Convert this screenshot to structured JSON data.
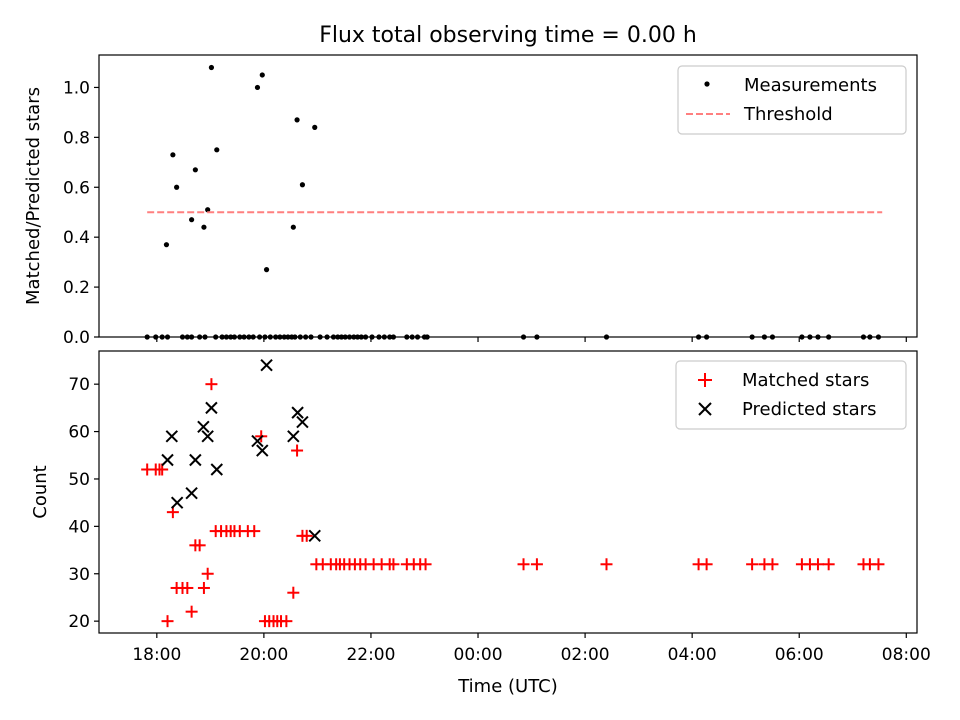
{
  "figure": {
    "title": "Flux total observing time = 0.00 h",
    "xlabel": "Time (UTC)"
  },
  "chart_data": [
    {
      "type": "scatter",
      "ylabel": "Matched/Predicted stars",
      "xlim": [
        16.92,
        32.2
      ],
      "ylim": [
        0,
        1.13
      ],
      "xticks": [
        "18:00",
        "20:00",
        "22:00",
        "00:00",
        "02:00",
        "04:00",
        "06:00",
        "08:00"
      ],
      "yticks": [
        0.0,
        0.2,
        0.4,
        0.6,
        0.8,
        1.0
      ],
      "ytick_labels": [
        "0.0",
        "0.2",
        "0.4",
        "0.6",
        "0.8",
        "1.0"
      ],
      "legend": {
        "placement": "top-right"
      },
      "series": [
        {
          "name": "Measurements",
          "marker": "point",
          "color": "#000000",
          "x": [
            18.18,
            18.3,
            18.37,
            18.65,
            18.72,
            18.88,
            18.95,
            19.02,
            19.12,
            19.88,
            19.97,
            20.05,
            20.55,
            20.62,
            20.72,
            20.95,
            17.82,
            17.98,
            18.1,
            18.2,
            18.48,
            18.57,
            18.65,
            18.8,
            18.9,
            19.1,
            19.22,
            19.3,
            19.38,
            19.45,
            19.55,
            19.63,
            19.72,
            19.8,
            19.92,
            20.02,
            20.12,
            20.22,
            20.3,
            20.38,
            20.45,
            20.52,
            20.58,
            20.68,
            20.78,
            20.88,
            21.05,
            21.18,
            21.3,
            21.38,
            21.45,
            21.52,
            21.6,
            21.68,
            21.75,
            21.82,
            21.9,
            22.02,
            22.15,
            22.25,
            22.35,
            22.42,
            22.67,
            22.77,
            22.87,
            23.0,
            23.05,
            24.85,
            25.1,
            26.4,
            28.12,
            28.27,
            29.12,
            29.35,
            29.5,
            30.05,
            30.2,
            30.35,
            30.55,
            31.2,
            31.32,
            31.48
          ],
          "y": [
            0.37,
            0.73,
            0.6,
            0.47,
            0.67,
            0.44,
            0.51,
            1.08,
            0.75,
            1.0,
            1.05,
            0.27,
            0.44,
            0.87,
            0.61,
            0.84,
            0,
            0,
            0,
            0,
            0,
            0,
            0,
            0,
            0,
            0,
            0,
            0,
            0,
            0,
            0,
            0,
            0,
            0,
            0,
            0,
            0,
            0,
            0,
            0,
            0,
            0,
            0,
            0,
            0,
            0,
            0,
            0,
            0,
            0,
            0,
            0,
            0,
            0,
            0,
            0,
            0,
            0,
            0,
            0,
            0,
            0,
            0,
            0,
            0,
            0,
            0,
            0,
            0,
            0,
            0,
            0,
            0,
            0,
            0,
            0,
            0,
            0,
            0,
            0,
            0,
            0
          ]
        },
        {
          "name": "Threshold",
          "marker": "dashed-line",
          "color": "#ff7f7f",
          "x": [
            17.82,
            31.55
          ],
          "y": [
            0.5,
            0.5
          ]
        }
      ]
    },
    {
      "type": "scatter",
      "ylabel": "Count",
      "xlim": [
        16.92,
        32.2
      ],
      "ylim": [
        17.5,
        77
      ],
      "xticks": [
        "18:00",
        "20:00",
        "22:00",
        "00:00",
        "02:00",
        "04:00",
        "06:00",
        "08:00"
      ],
      "xtick_values": [
        18,
        20,
        22,
        24,
        26,
        28,
        30,
        32
      ],
      "yticks": [
        20,
        30,
        40,
        50,
        60,
        70
      ],
      "ytick_labels": [
        "20",
        "30",
        "40",
        "50",
        "60",
        "70"
      ],
      "legend": {
        "placement": "top-right"
      },
      "series": [
        {
          "name": "Matched stars",
          "marker": "plus",
          "color": "#ff0000",
          "x": [
            17.82,
            17.98,
            18.05,
            18.1,
            18.2,
            18.3,
            18.37,
            18.48,
            18.57,
            18.65,
            18.72,
            18.8,
            18.88,
            18.95,
            19.02,
            19.1,
            19.2,
            19.3,
            19.38,
            19.45,
            19.55,
            19.7,
            19.82,
            19.95,
            20.02,
            20.1,
            20.18,
            20.25,
            20.32,
            20.42,
            20.55,
            20.62,
            20.72,
            20.8,
            20.98,
            21.1,
            21.25,
            21.35,
            21.42,
            21.5,
            21.6,
            21.7,
            21.8,
            21.9,
            22.05,
            22.2,
            22.35,
            22.42,
            22.67,
            22.8,
            22.92,
            23.02,
            24.85,
            25.1,
            26.4,
            28.12,
            28.27,
            29.12,
            29.35,
            29.5,
            30.05,
            30.2,
            30.35,
            30.55,
            31.2,
            31.32,
            31.48
          ],
          "y": [
            52,
            52,
            52,
            52,
            20,
            43,
            27,
            27,
            27,
            22,
            36,
            36,
            27,
            30,
            70,
            39,
            39,
            39,
            39,
            39,
            39,
            39,
            39,
            59,
            20,
            20,
            20,
            20,
            20,
            20,
            26,
            56,
            38,
            38,
            32,
            32,
            32,
            32,
            32,
            32,
            32,
            32,
            32,
            32,
            32,
            32,
            32,
            32,
            32,
            32,
            32,
            32,
            32,
            32,
            32,
            32,
            32,
            32,
            32,
            32,
            32,
            32,
            32,
            32,
            32,
            32,
            32
          ]
        },
        {
          "name": "Predicted stars",
          "marker": "x",
          "color": "#000000",
          "x": [
            18.2,
            18.28,
            18.38,
            18.65,
            18.72,
            18.87,
            18.95,
            19.02,
            19.12,
            19.88,
            19.97,
            20.05,
            20.55,
            20.63,
            20.72,
            20.95
          ],
          "y": [
            54,
            59,
            45,
            47,
            54,
            61,
            59,
            65,
            52,
            58,
            56,
            74,
            59,
            64,
            62,
            38
          ]
        }
      ]
    }
  ]
}
